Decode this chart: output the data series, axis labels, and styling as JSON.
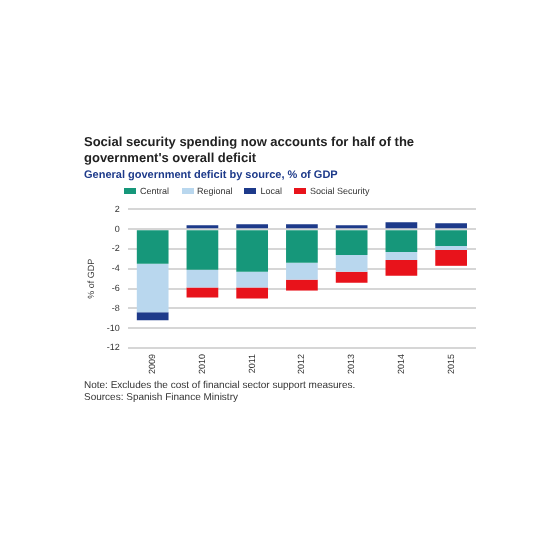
{
  "chart_data": {
    "type": "bar",
    "title": "Social security spending now accounts for half of the government's overall deficit",
    "subtitle": "General government deficit by source, % of GDP",
    "ylabel": "% of GDP",
    "categories": [
      "2009",
      "2010",
      "2011",
      "2012",
      "2013",
      "2014",
      "2015"
    ],
    "stacked": true,
    "legend": "top left",
    "grid": "y",
    "series": [
      {
        "name": "Central",
        "color": "#16977a",
        "values": [
          -3.5,
          -4.1,
          -4.3,
          -3.4,
          -2.6,
          -2.3,
          -1.7
        ]
      },
      {
        "name": "Regional",
        "color": "#b9d7ee",
        "values": [
          -4.9,
          -1.8,
          -1.6,
          -1.7,
          -1.7,
          -0.8,
          -0.4
        ]
      },
      {
        "name": "Local",
        "color": "#1d3a8a",
        "values": [
          -0.8,
          0.4,
          0.5,
          0.5,
          0.4,
          0.7,
          0.6
        ]
      },
      {
        "name": "Social Security",
        "color": "#e8131b",
        "values": [
          0,
          -1.0,
          -1.1,
          -1.1,
          -1.1,
          -1.6,
          -1.6
        ]
      }
    ],
    "ylim": [
      -12,
      2
    ],
    "yticks": [
      -12,
      -10,
      -8,
      -6,
      -4,
      -2,
      0,
      2
    ],
    "annotations": [
      "Note: Excludes the cost of financial sector support measures.",
      "Sources: Spanish Finance Ministry"
    ]
  }
}
